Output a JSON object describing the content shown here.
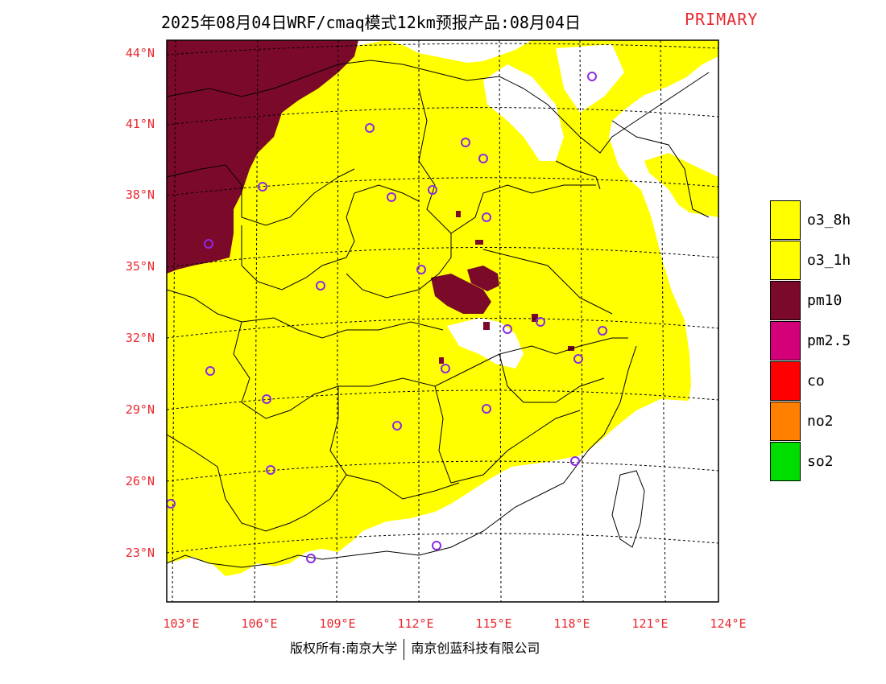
{
  "header": {
    "title": "2025年08月04日WRF/cmaq模式12km预报产品:08月04日",
    "tag": "PRIMARY"
  },
  "axes": {
    "lat_labels": [
      "44°N",
      "41°N",
      "38°N",
      "35°N",
      "32°N",
      "29°N",
      "26°N",
      "23°N"
    ],
    "lon_labels": [
      "103°E",
      "106°E",
      "109°E",
      "112°E",
      "115°E",
      "118°E",
      "121°E",
      "124°E"
    ]
  },
  "legend": [
    {
      "label": "o3_8h",
      "color": "#ffff00"
    },
    {
      "label": "o3_1h",
      "color": "#ffff00"
    },
    {
      "label": "pm10",
      "color": "#7b0a2a"
    },
    {
      "label": "pm2.5",
      "color": "#d4007a"
    },
    {
      "label": "co",
      "color": "#ff0000"
    },
    {
      "label": "no2",
      "color": "#ff7f00"
    },
    {
      "label": "so2",
      "color": "#00dd00"
    }
  ],
  "colors": {
    "o3": "#ffff00",
    "pm10": "#7b0a2a",
    "boundary": "#000000",
    "station_ring": "#8a2be2",
    "axis_label": "#e8282f"
  },
  "footer": {
    "left": "版权所有:南京大学",
    "right": "南京创蓝科技有限公司"
  }
}
